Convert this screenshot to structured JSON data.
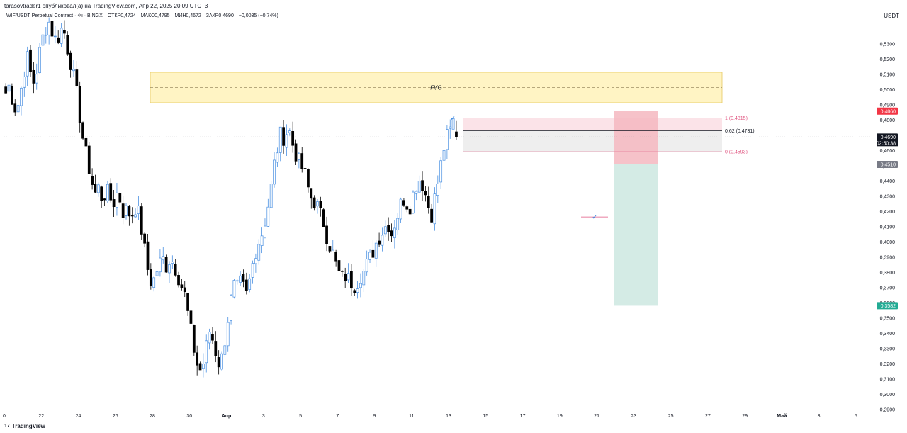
{
  "header": {
    "published_line": "tarasovtrader1 опубликовал(а) на TradingView.com, Апр 22, 2025 20:09 UTC+3",
    "symbol": "WIF/USDT Perpetual Contract · 4ч · BINGX",
    "open": "ОТКР0,4724",
    "high": "МАКС0,4795",
    "low": "МИН0,4672",
    "close": "ЗАКР0,4690",
    "change": "−0,0035 (−0,74%)",
    "currency": "USDT"
  },
  "footer": {
    "brand": "TradingView",
    "brand_icon": "tradingview-logo-icon"
  },
  "colors": {
    "up_candle": "#4a90e2",
    "down_candle": "#000000",
    "fvg_fill": "#fff4c4",
    "fvg_border": "#e6c860",
    "stop_zone": "#f5b7bf",
    "target_zone": "#cfe9e2",
    "fib_line": "#e05580",
    "current_price_bg": "#131722",
    "red_tag": "#f23645",
    "gray_tag": "#787b86",
    "green_tag": "#22ab94"
  },
  "chart_data": {
    "type": "candlestick",
    "ylim": [
      0.29,
      0.545
    ],
    "y_ticks": [
      "0,5300",
      "0,5200",
      "0,5100",
      "0,5000",
      "0,4900",
      "0,4800",
      "0,4700",
      "0,4600",
      "0,4500",
      "0,4400",
      "0,4300",
      "0,4200",
      "0,4100",
      "0,4000",
      "0,3900",
      "0,3800",
      "0,3700",
      "0,3600",
      "0,3500",
      "0,3400",
      "0,3300",
      "0,3200",
      "0,3100",
      "0,3000",
      "0,2900"
    ],
    "y_tick_values": [
      0.53,
      0.52,
      0.51,
      0.5,
      0.49,
      0.48,
      0.47,
      0.46,
      0.45,
      0.44,
      0.43,
      0.42,
      0.41,
      0.4,
      0.39,
      0.38,
      0.37,
      0.36,
      0.35,
      0.34,
      0.33,
      0.32,
      0.31,
      0.3,
      0.29
    ],
    "x_labels": [
      "0",
      "22",
      "24",
      "26",
      "28",
      "30",
      "Апр",
      "3",
      "5",
      "7",
      "9",
      "11",
      "13",
      "15",
      "17",
      "19",
      "21",
      "23",
      "25",
      "27",
      "29",
      "Май",
      "3",
      "5"
    ],
    "x_start": "2025-03-20",
    "candles_per_day": 6,
    "x_total_slots": 282,
    "close_path": [
      0.498,
      0.503,
      0.492,
      0.486,
      0.496,
      0.512,
      0.521,
      0.51,
      0.504,
      0.518,
      0.531,
      0.54,
      0.545,
      0.538,
      0.532,
      0.537,
      0.542,
      0.53,
      0.52,
      0.508,
      0.495,
      0.478,
      0.462,
      0.452,
      0.44,
      0.432,
      0.436,
      0.428,
      0.434,
      0.43,
      0.425,
      0.432,
      0.428,
      0.418,
      0.422,
      0.416,
      0.424,
      0.42,
      0.408,
      0.392,
      0.378,
      0.372,
      0.38,
      0.386,
      0.389,
      0.384,
      0.39,
      0.386,
      0.38,
      0.372,
      0.366,
      0.352,
      0.338,
      0.325,
      0.315,
      0.318,
      0.33,
      0.342,
      0.335,
      0.325,
      0.318,
      0.332,
      0.348,
      0.362,
      0.372,
      0.368,
      0.376,
      0.362,
      0.372,
      0.385,
      0.396,
      0.402,
      0.408,
      0.42,
      0.432,
      0.45,
      0.462,
      0.472,
      0.468,
      0.476,
      0.466,
      0.459,
      0.452,
      0.448,
      0.442,
      0.43,
      0.428,
      0.424,
      0.418,
      0.412,
      0.402,
      0.396,
      0.388,
      0.38,
      0.376,
      0.378,
      0.375,
      0.373,
      0.372,
      0.378,
      0.38,
      0.385,
      0.39,
      0.396,
      0.402,
      0.406,
      0.41,
      0.412,
      0.405,
      0.415,
      0.42,
      0.43,
      0.426,
      0.424,
      0.432,
      0.44,
      0.442,
      0.435,
      0.425,
      0.418,
      0.429,
      0.441,
      0.455,
      0.468,
      0.47,
      0.481,
      0.469
    ],
    "current_price": "0,4690",
    "countdown": "02:50:38",
    "annotations": {
      "fvg": {
        "label": "FVG",
        "top": 0.5115,
        "bottom": 0.4915,
        "mid": 0.5015
      },
      "fib_1": {
        "label": "1 (0,4815)",
        "value": 0.4815
      },
      "fib_062": {
        "label": "0,62 (0,4731)",
        "value": 0.4731
      },
      "fib_0": {
        "label": "0 (0,4593)",
        "value": 0.4593
      },
      "stop_price": "0,4860",
      "stop_value": 0.486,
      "entry_price": "0,4510",
      "entry_value": 0.451,
      "target_price": "0,3582",
      "target_value": 0.3582,
      "checkmark": "✔"
    }
  }
}
